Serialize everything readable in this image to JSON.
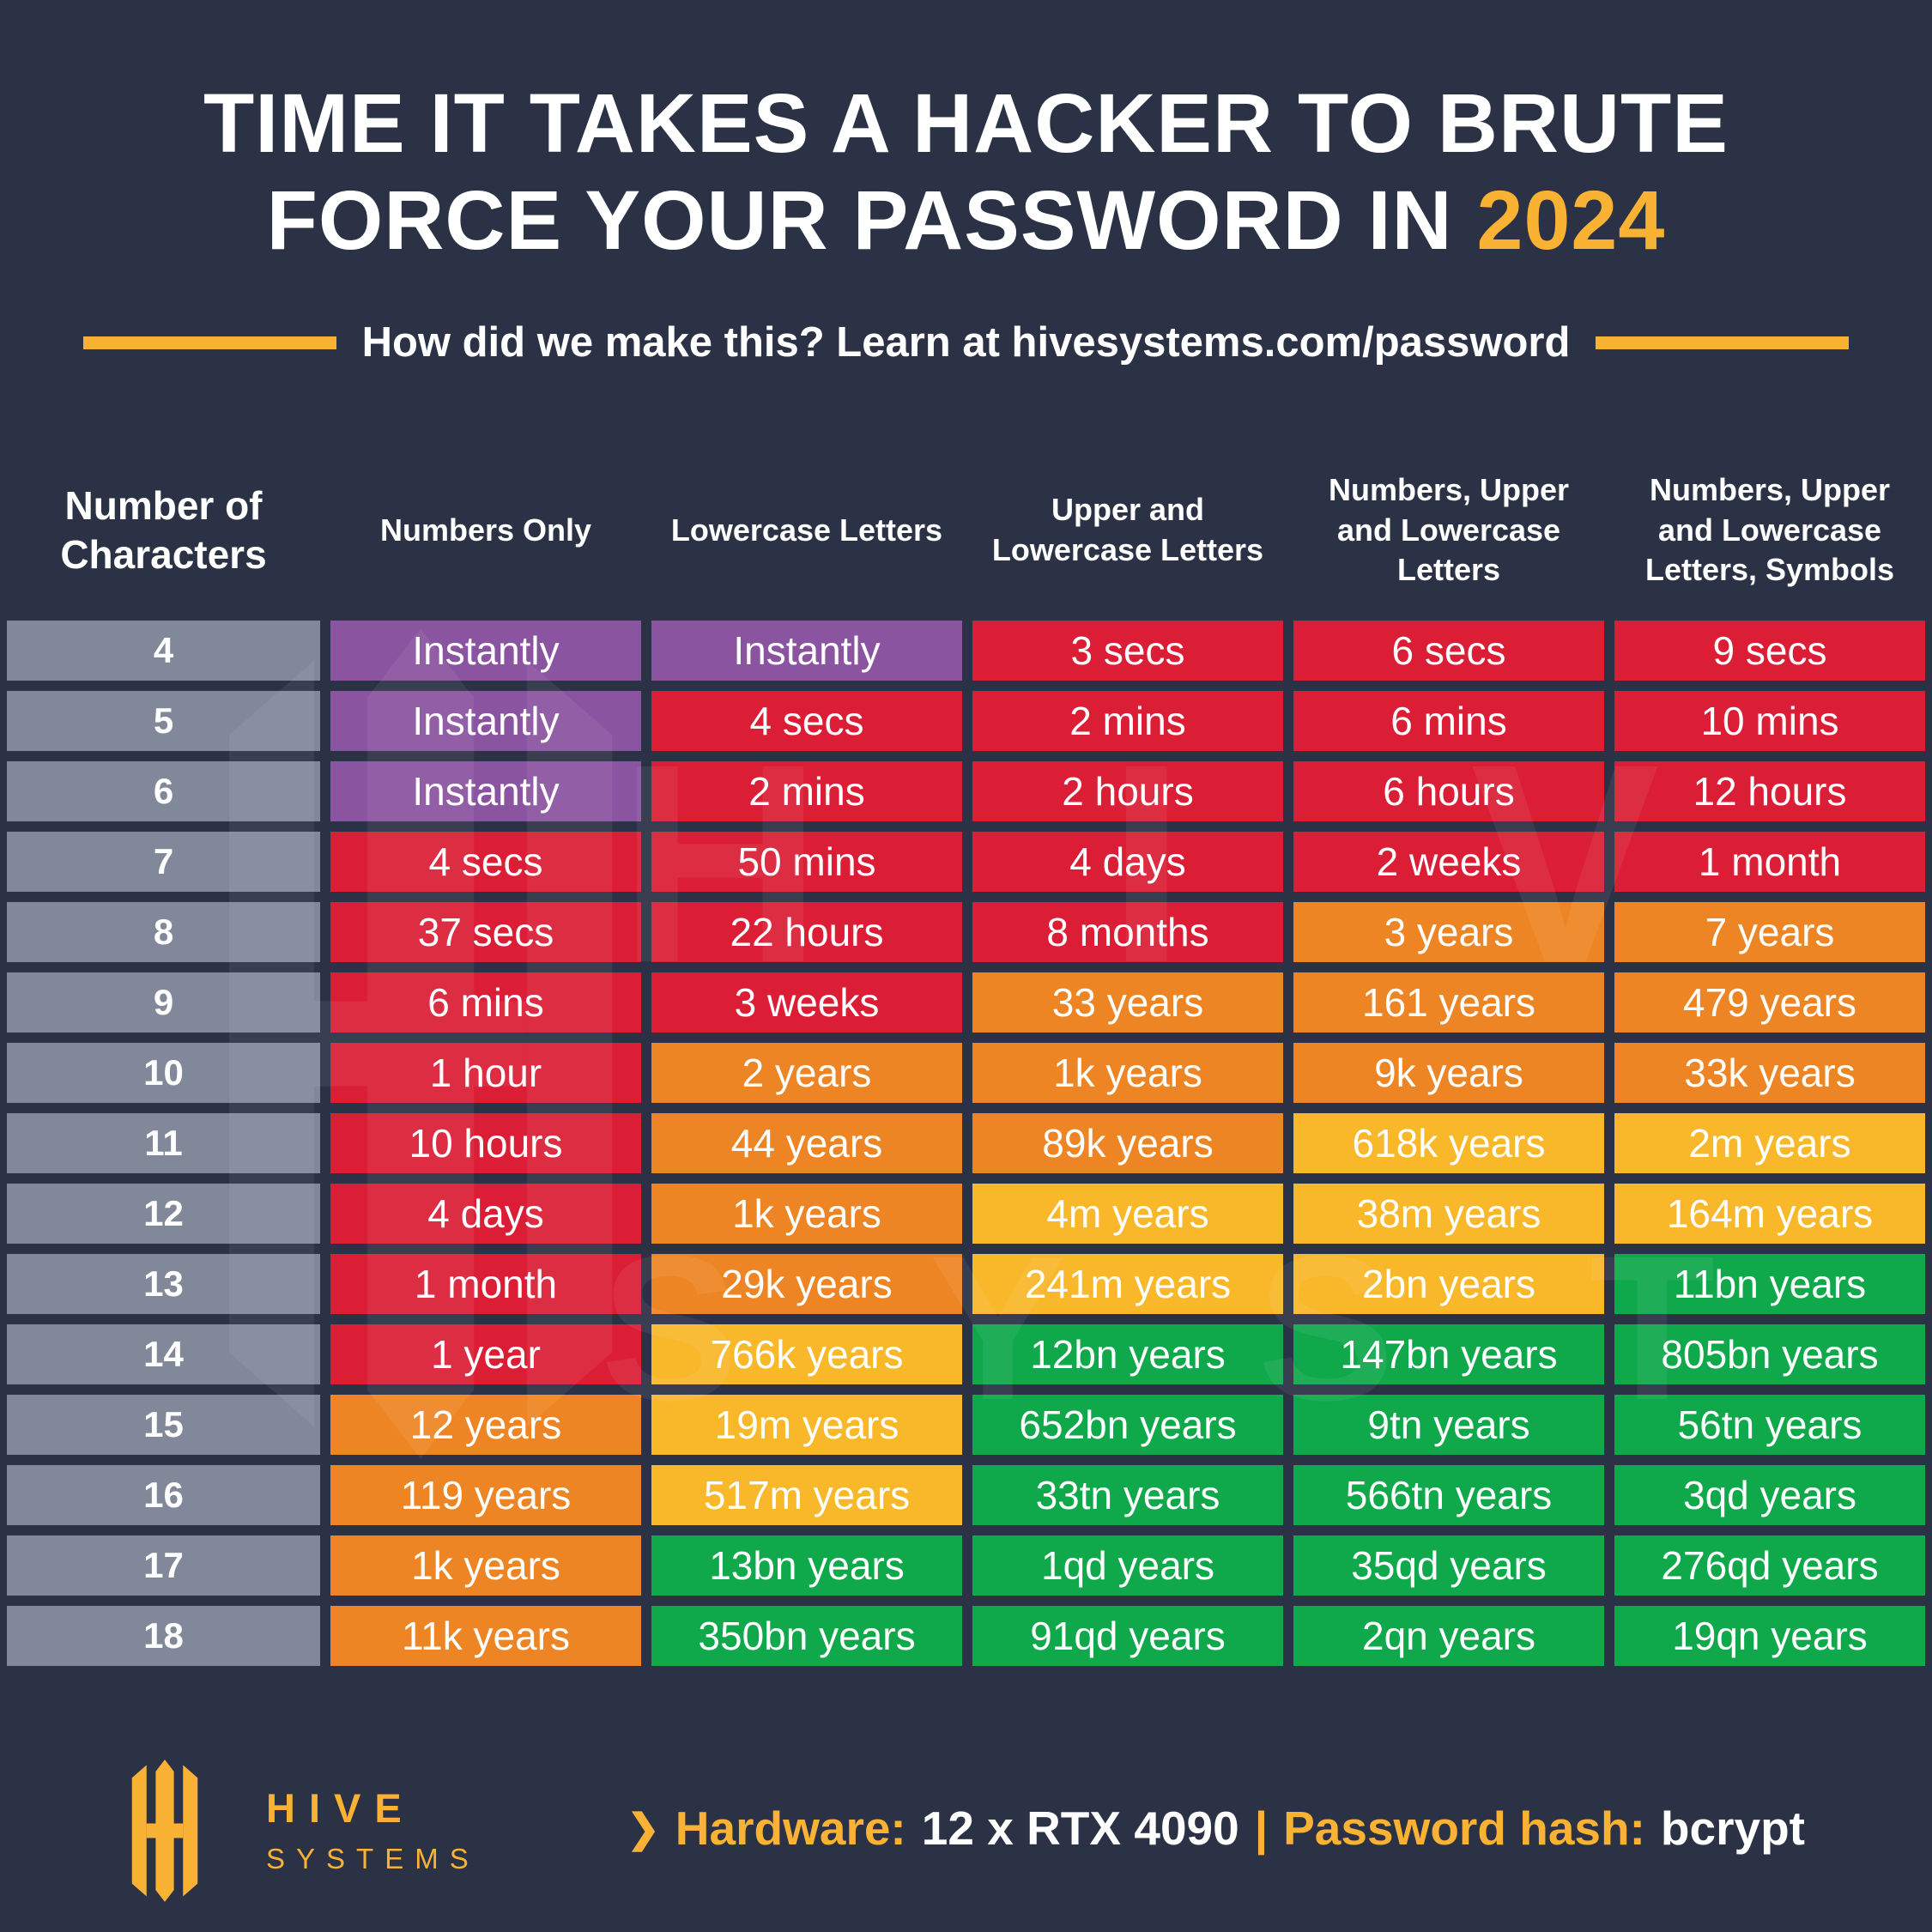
{
  "title": {
    "line1": "TIME IT TAKES A HACKER TO BRUTE",
    "line2": "FORCE YOUR PASSWORD IN ",
    "year": "2024"
  },
  "subtitle": "How did we make this? Learn at hivesystems.com/password",
  "table": {
    "headers": [
      "Number of Characters",
      "Numbers Only",
      "Lowercase Letters",
      "Upper and Lowercase Letters",
      "Numbers, Upper and Lowercase Letters",
      "Numbers, Upper and Lowercase Letters, Symbols"
    ],
    "cell_colors": [
      [
        "purple",
        "purple",
        "red",
        "red",
        "red"
      ],
      [
        "purple",
        "red",
        "red",
        "red",
        "red"
      ],
      [
        "purple",
        "red",
        "red",
        "red",
        "red"
      ],
      [
        "red",
        "red",
        "red",
        "red",
        "red"
      ],
      [
        "red",
        "red",
        "red",
        "orange",
        "orange"
      ],
      [
        "red",
        "red",
        "orange",
        "orange",
        "orange"
      ],
      [
        "red",
        "orange",
        "orange",
        "orange",
        "orange"
      ],
      [
        "red",
        "orange",
        "orange",
        "yellow",
        "yellow"
      ],
      [
        "red",
        "orange",
        "yellow",
        "yellow",
        "yellow"
      ],
      [
        "red",
        "orange",
        "yellow",
        "yellow",
        "green"
      ],
      [
        "red",
        "yellow",
        "green",
        "green",
        "green"
      ],
      [
        "orange",
        "yellow",
        "green",
        "green",
        "green"
      ],
      [
        "orange",
        "yellow",
        "green",
        "green",
        "green"
      ],
      [
        "orange",
        "green",
        "green",
        "green",
        "green"
      ],
      [
        "orange",
        "green",
        "green",
        "green",
        "green"
      ]
    ]
  },
  "chart_data": {
    "type": "table",
    "title": "Time It Takes a Hacker to Brute Force Your Password in 2024",
    "row_header": "Number of Characters",
    "columns": [
      "Numbers Only",
      "Lowercase Letters",
      "Upper and Lowercase Letters",
      "Numbers, Upper and Lowercase Letters",
      "Numbers, Upper and Lowercase Letters, Symbols"
    ],
    "rows": [
      {
        "characters": "4",
        "values": [
          "Instantly",
          "Instantly",
          "3 secs",
          "6 secs",
          "9 secs"
        ]
      },
      {
        "characters": "5",
        "values": [
          "Instantly",
          "4 secs",
          "2 mins",
          "6 mins",
          "10 mins"
        ]
      },
      {
        "characters": "6",
        "values": [
          "Instantly",
          "2 mins",
          "2 hours",
          "6 hours",
          "12 hours"
        ]
      },
      {
        "characters": "7",
        "values": [
          "4 secs",
          "50 mins",
          "4 days",
          "2 weeks",
          "1 month"
        ]
      },
      {
        "characters": "8",
        "values": [
          "37 secs",
          "22 hours",
          "8 months",
          "3 years",
          "7 years"
        ]
      },
      {
        "characters": "9",
        "values": [
          "6 mins",
          "3 weeks",
          "33 years",
          "161 years",
          "479 years"
        ]
      },
      {
        "characters": "10",
        "values": [
          "1 hour",
          "2 years",
          "1k years",
          "9k years",
          "33k years"
        ]
      },
      {
        "characters": "11",
        "values": [
          "10 hours",
          "44 years",
          "89k years",
          "618k years",
          "2m years"
        ]
      },
      {
        "characters": "12",
        "values": [
          "4 days",
          "1k years",
          "4m years",
          "38m years",
          "164m years"
        ]
      },
      {
        "characters": "13",
        "values": [
          "1 month",
          "29k years",
          "241m years",
          "2bn years",
          "11bn years"
        ]
      },
      {
        "characters": "14",
        "values": [
          "1 year",
          "766k years",
          "12bn years",
          "147bn years",
          "805bn years"
        ]
      },
      {
        "characters": "15",
        "values": [
          "12 years",
          "19m years",
          "652bn years",
          "9tn years",
          "56tn years"
        ]
      },
      {
        "characters": "16",
        "values": [
          "119 years",
          "517m years",
          "33tn years",
          "566tn years",
          "3qd years"
        ]
      },
      {
        "characters": "17",
        "values": [
          "1k years",
          "13bn years",
          "1qd years",
          "35qd years",
          "276qd years"
        ]
      },
      {
        "characters": "18",
        "values": [
          "11k years",
          "350bn years",
          "91qd years",
          "2qn years",
          "19qn years"
        ]
      }
    ]
  },
  "colors": {
    "navy": "#2B3245",
    "gold": "#F9B234",
    "purple": "#8B54A1",
    "red": "#DB1E36",
    "orange": "#EE8524",
    "yellow": "#F9B82A",
    "green": "#0FA84B",
    "gray": "#81889A",
    "white": "#FFFFFF"
  },
  "watermark": {
    "line1": "H I V E",
    "line2": "S Y S T E M S"
  },
  "footer": {
    "brand_name": "HIVE",
    "brand_sub": "SYSTEMS",
    "arrow": "❯",
    "hardware_label": "Hardware:",
    "hardware_value": "12 x RTX 4090",
    "separator": "|",
    "hash_label": "Password hash:",
    "hash_value": "bcrypt"
  }
}
